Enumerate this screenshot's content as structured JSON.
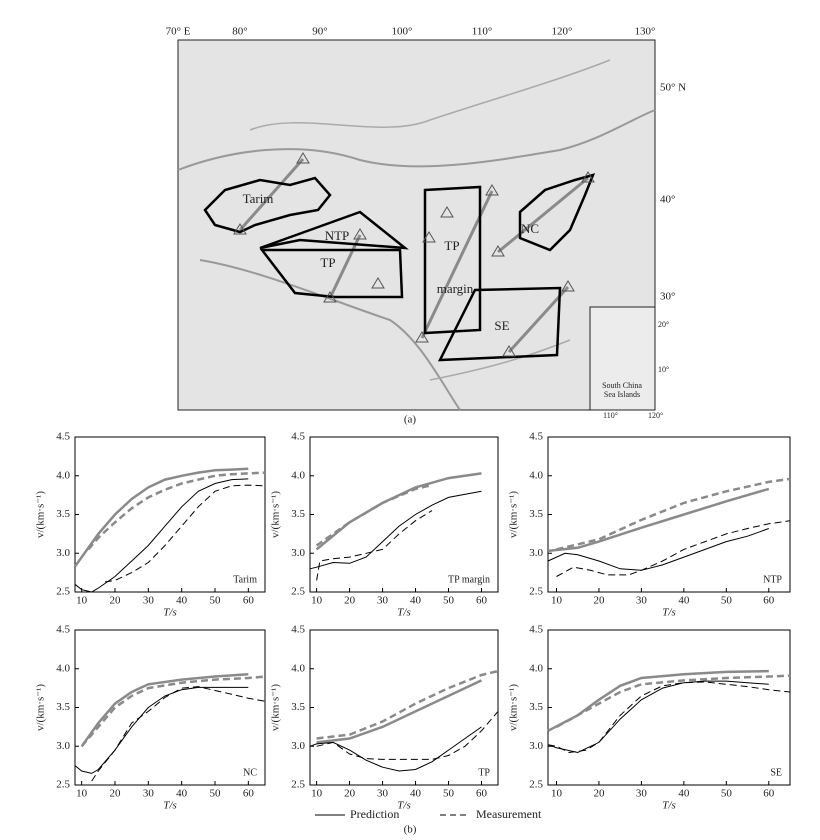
{
  "map": {
    "top_ticks": [
      "70° E",
      "80°",
      "90°",
      "100°",
      "110°",
      "120°",
      "130°"
    ],
    "right_ticks": [
      "50° N",
      "40°",
      "30°"
    ],
    "inset_ticks": [
      "20°",
      "10°",
      "110°",
      "120°"
    ],
    "inset_title": [
      "South China",
      "Sea Islands"
    ],
    "regions": [
      "Tarim",
      "NTP",
      "TP",
      "TP",
      "margin",
      "NC",
      "SE"
    ],
    "caption": "(a)"
  },
  "legend": {
    "items": [
      {
        "name": "Prediction",
        "dash": "solid"
      },
      {
        "name": "Measurement",
        "dash": "dashed"
      }
    ],
    "caption": "(b)"
  },
  "chart_data": [
    {
      "type": "line",
      "title": "Tarim",
      "xlabel": "T/s",
      "ylabel": "v/(km·s⁻¹)",
      "xlim": [
        8,
        65
      ],
      "ylim": [
        2.5,
        4.5
      ],
      "xticks": [
        10,
        20,
        30,
        40,
        50,
        60
      ],
      "yticks": [
        2.5,
        {
          "value": 3,
          "label": "3.0"
        },
        3.5,
        {
          "value": 4,
          "label": "4.0"
        },
        4.5
      ],
      "series": [
        {
          "color": "#8a8a8a",
          "dash": "solid",
          "x": [
            8,
            10,
            15,
            20,
            25,
            30,
            35,
            40,
            45,
            50,
            55,
            60
          ],
          "values": [
            2.83,
            2.95,
            3.25,
            3.5,
            3.7,
            3.85,
            3.95,
            4.0,
            4.04,
            4.07,
            4.08,
            4.09
          ]
        },
        {
          "color": "#8a8a8a",
          "dash": "dashed",
          "x": [
            12,
            15,
            20,
            25,
            30,
            35,
            40,
            45,
            50,
            55,
            60,
            65
          ],
          "values": [
            3.05,
            3.2,
            3.4,
            3.58,
            3.72,
            3.82,
            3.9,
            3.95,
            4.0,
            4.02,
            4.03,
            4.04
          ]
        },
        {
          "color": "#000000",
          "dash": "solid",
          "x": [
            8,
            10,
            13,
            15,
            20,
            25,
            30,
            35,
            40,
            45,
            50,
            55,
            60
          ],
          "values": [
            2.6,
            2.53,
            2.5,
            2.55,
            2.7,
            2.9,
            3.1,
            3.35,
            3.6,
            3.8,
            3.9,
            3.95,
            3.96
          ]
        },
        {
          "color": "#000000",
          "dash": "dashed",
          "x": [
            17,
            20,
            25,
            30,
            35,
            40,
            45,
            50,
            55,
            60,
            65
          ],
          "values": [
            2.63,
            2.65,
            2.75,
            2.88,
            3.1,
            3.35,
            3.6,
            3.8,
            3.87,
            3.88,
            3.87
          ]
        }
      ]
    },
    {
      "type": "line",
      "title": "TP margin",
      "xlabel": "T/s",
      "ylabel": "v/(km·s⁻¹)",
      "xlim": [
        8,
        65
      ],
      "ylim": [
        2.5,
        4.5
      ],
      "xticks": [
        10,
        20,
        30,
        40,
        50,
        60
      ],
      "yticks": [
        2.5,
        {
          "value": 3,
          "label": "3.0"
        },
        3.5,
        {
          "value": 4,
          "label": "4.0"
        },
        4.5
      ],
      "series": [
        {
          "color": "#8a8a8a",
          "dash": "solid",
          "x": [
            10,
            20,
            30,
            40,
            50,
            60
          ],
          "values": [
            3.05,
            3.4,
            3.65,
            3.85,
            3.97,
            4.03
          ]
        },
        {
          "color": "#8a8a8a",
          "dash": "dashed",
          "x": [
            10,
            20,
            30,
            40,
            45
          ],
          "values": [
            3.1,
            3.4,
            3.65,
            3.83,
            3.88
          ]
        },
        {
          "color": "#000000",
          "dash": "solid",
          "x": [
            8,
            10,
            15,
            20,
            25,
            30,
            35,
            40,
            45,
            50,
            60
          ],
          "values": [
            2.8,
            2.82,
            2.88,
            2.87,
            2.95,
            3.15,
            3.35,
            3.5,
            3.62,
            3.72,
            3.8
          ]
        },
        {
          "color": "#000000",
          "dash": "dashed",
          "x": [
            10,
            11,
            15,
            20,
            25,
            30,
            35,
            40,
            45
          ],
          "values": [
            2.65,
            2.9,
            2.93,
            2.95,
            3.0,
            3.05,
            3.25,
            3.42,
            3.55
          ]
        }
      ]
    },
    {
      "type": "line",
      "title": "NTP",
      "xlabel": "T/s",
      "ylabel": "v/(km·s⁻¹)",
      "xlim": [
        8,
        65
      ],
      "ylim": [
        2.5,
        4.5
      ],
      "xticks": [
        10,
        20,
        30,
        40,
        50,
        60
      ],
      "yticks": [
        2.5,
        {
          "value": 3,
          "label": "3.0"
        },
        3.5,
        {
          "value": 4,
          "label": "4.0"
        },
        4.5
      ],
      "series": [
        {
          "color": "#8a8a8a",
          "dash": "solid",
          "x": [
            8,
            15,
            20,
            30,
            40,
            50,
            60
          ],
          "values": [
            3.03,
            3.07,
            3.15,
            3.33,
            3.5,
            3.67,
            3.83
          ]
        },
        {
          "color": "#8a8a8a",
          "dash": "dashed",
          "x": [
            10,
            20,
            30,
            40,
            50,
            60,
            65
          ],
          "values": [
            3.05,
            3.18,
            3.43,
            3.65,
            3.8,
            3.92,
            3.96
          ]
        },
        {
          "color": "#000000",
          "dash": "solid",
          "x": [
            8,
            12,
            15,
            20,
            25,
            30,
            35,
            40,
            45,
            50,
            55,
            60
          ],
          "values": [
            2.9,
            3.0,
            2.98,
            2.9,
            2.8,
            2.78,
            2.85,
            2.95,
            3.05,
            3.15,
            3.22,
            3.32
          ]
        },
        {
          "color": "#000000",
          "dash": "dashed",
          "x": [
            10,
            14,
            18,
            22,
            27,
            30,
            35,
            40,
            45,
            50,
            55,
            60,
            65
          ],
          "values": [
            2.7,
            2.82,
            2.78,
            2.72,
            2.72,
            2.78,
            2.9,
            3.05,
            3.15,
            3.25,
            3.32,
            3.38,
            3.42
          ]
        }
      ]
    },
    {
      "type": "line",
      "title": "NC",
      "xlabel": "T/s",
      "ylabel": "v/(km·s⁻¹)",
      "xlim": [
        8,
        65
      ],
      "ylim": [
        2.5,
        4.5
      ],
      "xticks": [
        10,
        20,
        30,
        40,
        50,
        60
      ],
      "yticks": [
        2.5,
        {
          "value": 3,
          "label": "3.0"
        },
        3.5,
        {
          "value": 4,
          "label": "4.0"
        },
        4.5
      ],
      "series": [
        {
          "color": "#8a8a8a",
          "dash": "solid",
          "x": [
            10,
            15,
            20,
            25,
            30,
            40,
            50,
            60
          ],
          "values": [
            3.0,
            3.3,
            3.55,
            3.7,
            3.8,
            3.86,
            3.9,
            3.93
          ]
        },
        {
          "color": "#8a8a8a",
          "dash": "dashed",
          "x": [
            10,
            15,
            20,
            25,
            30,
            40,
            50,
            60,
            65
          ],
          "values": [
            3.0,
            3.25,
            3.5,
            3.65,
            3.75,
            3.82,
            3.86,
            3.88,
            3.9
          ]
        },
        {
          "color": "#000000",
          "dash": "solid",
          "x": [
            8,
            10,
            13,
            15,
            20,
            25,
            30,
            35,
            40,
            45,
            50,
            60
          ],
          "values": [
            2.75,
            2.68,
            2.65,
            2.7,
            2.95,
            3.25,
            3.5,
            3.65,
            3.73,
            3.76,
            3.76,
            3.76
          ]
        },
        {
          "color": "#000000",
          "dash": "dashed",
          "x": [
            13,
            15,
            20,
            25,
            30,
            35,
            40,
            45,
            50,
            55,
            60,
            65
          ],
          "values": [
            2.55,
            2.68,
            2.95,
            3.3,
            3.45,
            3.63,
            3.75,
            3.77,
            3.72,
            3.67,
            3.62,
            3.58
          ]
        }
      ]
    },
    {
      "type": "line",
      "title": "TP",
      "xlabel": "T/s",
      "ylabel": "v/(km·s⁻¹)",
      "xlim": [
        8,
        65
      ],
      "ylim": [
        2.5,
        4.5
      ],
      "xticks": [
        10,
        20,
        30,
        40,
        50,
        60
      ],
      "yticks": [
        2.5,
        {
          "value": 3,
          "label": "3.0"
        },
        3.5,
        {
          "value": 4,
          "label": "4.0"
        },
        4.5
      ],
      "series": [
        {
          "color": "#8a8a8a",
          "dash": "solid",
          "x": [
            10,
            20,
            30,
            40,
            50,
            60
          ],
          "values": [
            3.05,
            3.1,
            3.25,
            3.45,
            3.65,
            3.85
          ]
        },
        {
          "color": "#8a8a8a",
          "dash": "dashed",
          "x": [
            10,
            20,
            30,
            40,
            50,
            60,
            65
          ],
          "values": [
            3.1,
            3.15,
            3.32,
            3.55,
            3.75,
            3.92,
            3.97
          ]
        },
        {
          "color": "#000000",
          "dash": "solid",
          "x": [
            8,
            10,
            15,
            20,
            25,
            30,
            35,
            40,
            45,
            50,
            55,
            60
          ],
          "values": [
            3.0,
            3.03,
            3.05,
            2.95,
            2.82,
            2.73,
            2.68,
            2.7,
            2.8,
            2.95,
            3.1,
            3.25
          ]
        },
        {
          "color": "#000000",
          "dash": "dashed",
          "x": [
            10,
            15,
            20,
            25,
            30,
            40,
            45,
            50,
            55,
            60,
            65
          ],
          "values": [
            3.0,
            3.05,
            2.9,
            2.84,
            2.83,
            2.83,
            2.83,
            2.88,
            3.0,
            3.2,
            3.45
          ]
        }
      ]
    },
    {
      "type": "line",
      "title": "SE",
      "xlabel": "T/s",
      "ylabel": "v/(km·s⁻¹)",
      "xlim": [
        8,
        65
      ],
      "ylim": [
        2.5,
        4.5
      ],
      "xticks": [
        10,
        20,
        30,
        40,
        50,
        60
      ],
      "yticks": [
        2.5,
        {
          "value": 3,
          "label": "3.0"
        },
        3.5,
        {
          "value": 4,
          "label": "4.0"
        },
        4.5
      ],
      "series": [
        {
          "color": "#8a8a8a",
          "dash": "solid",
          "x": [
            8,
            15,
            20,
            25,
            30,
            40,
            50,
            60
          ],
          "values": [
            3.2,
            3.4,
            3.6,
            3.78,
            3.88,
            3.93,
            3.96,
            3.97
          ]
        },
        {
          "color": "#8a8a8a",
          "dash": "dashed",
          "x": [
            10,
            15,
            20,
            25,
            30,
            40,
            50,
            60,
            65
          ],
          "values": [
            3.25,
            3.4,
            3.55,
            3.7,
            3.8,
            3.85,
            3.88,
            3.9,
            3.91
          ]
        },
        {
          "color": "#000000",
          "dash": "solid",
          "x": [
            8,
            10,
            15,
            20,
            25,
            30,
            35,
            40,
            45,
            50,
            55,
            60
          ],
          "values": [
            3.02,
            2.98,
            2.92,
            3.05,
            3.35,
            3.6,
            3.75,
            3.82,
            3.84,
            3.84,
            3.82,
            3.8
          ]
        },
        {
          "color": "#000000",
          "dash": "dashed",
          "x": [
            8,
            10,
            13,
            17,
            20,
            25,
            30,
            35,
            40,
            45,
            50,
            55,
            60,
            65
          ],
          "values": [
            3.02,
            3.0,
            2.92,
            2.95,
            3.05,
            3.4,
            3.65,
            3.78,
            3.82,
            3.83,
            3.8,
            3.77,
            3.73,
            3.7
          ]
        }
      ]
    }
  ]
}
